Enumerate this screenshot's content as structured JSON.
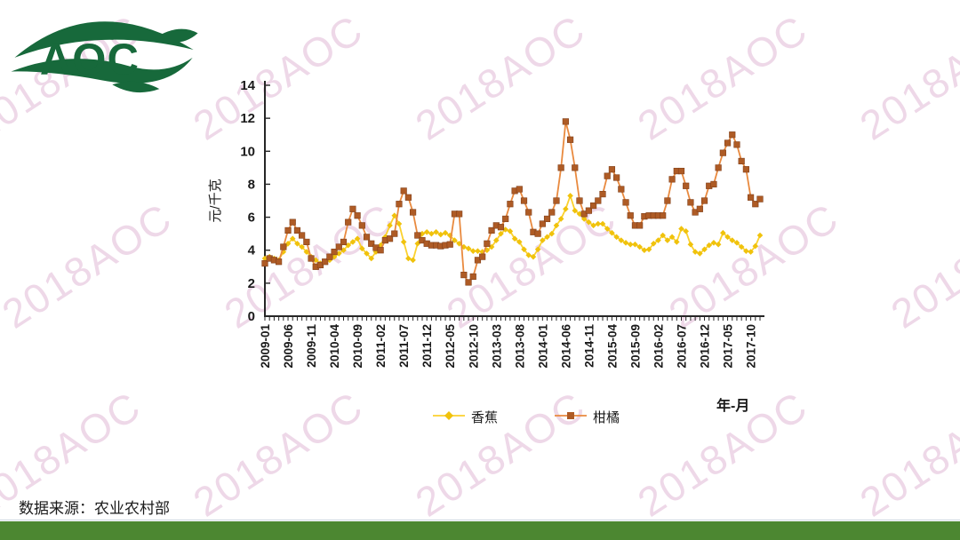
{
  "logo": {
    "text": "AOC",
    "color": "#17693B"
  },
  "watermark": {
    "text": "2018AOC",
    "color": "rgba(222,178,210,0.50)"
  },
  "source_note": "数据来源：农业农村部",
  "footer_bar_color": "#4C8731",
  "chart_data": {
    "type": "line",
    "title": "",
    "ylabel": "元/千克",
    "xlabel": "年-月",
    "ylim": [
      0,
      14
    ],
    "ytick_step": 2,
    "grid": false,
    "legend_position": "bottom",
    "x_tick_every": 5,
    "x_tick_labels": [
      "2009-01",
      "2009-06",
      "2009-11",
      "2010-04",
      "2010-09",
      "2011-02",
      "2011-07",
      "2011-12",
      "2012-05",
      "2012-10",
      "2013-03",
      "2013-08",
      "2014-01",
      "2014-06",
      "2014-11",
      "2015-04",
      "2015-09",
      "2016-02",
      "2016-07",
      "2016-12",
      "2017-05",
      "2017-10"
    ],
    "x_start": "2009-01",
    "x_end": "2017-12",
    "series": [
      {
        "name": "香蕉",
        "marker": "diamond",
        "color": "#FBD12E",
        "marker_color": "#F0C20C",
        "values": [
          3.5,
          3.6,
          3.5,
          3.4,
          3.9,
          4.4,
          4.7,
          4.4,
          4.2,
          3.9,
          3.6,
          3.4,
          3.2,
          3.3,
          3.4,
          3.6,
          3.8,
          4.0,
          4.3,
          4.5,
          4.7,
          4.1,
          3.8,
          3.5,
          3.9,
          4.3,
          4.8,
          5.5,
          6.1,
          5.6,
          4.5,
          3.5,
          3.4,
          4.4,
          5.0,
          5.1,
          5.0,
          5.1,
          4.95,
          5.05,
          4.9,
          4.6,
          4.4,
          4.2,
          4.1,
          3.95,
          3.95,
          3.9,
          4.0,
          4.2,
          4.6,
          5.0,
          5.25,
          5.15,
          4.7,
          4.5,
          4.05,
          3.7,
          3.6,
          4.05,
          4.6,
          4.8,
          5.0,
          5.5,
          5.9,
          6.5,
          7.3,
          6.4,
          6.2,
          5.9,
          5.7,
          5.5,
          5.6,
          5.6,
          5.3,
          5.05,
          4.8,
          4.6,
          4.45,
          4.35,
          4.35,
          4.2,
          4.0,
          4.05,
          4.4,
          4.6,
          4.9,
          4.6,
          4.8,
          4.5,
          5.3,
          5.15,
          4.35,
          3.9,
          3.8,
          4.05,
          4.3,
          4.45,
          4.35,
          5.05,
          4.8,
          4.6,
          4.45,
          4.2,
          3.95,
          3.9,
          4.25,
          4.9
        ]
      },
      {
        "name": "柑橘",
        "marker": "square",
        "color": "#E98A3F",
        "marker_color": "#AE5B25",
        "values": [
          3.2,
          3.5,
          3.4,
          3.3,
          4.2,
          5.2,
          5.7,
          5.2,
          4.9,
          4.5,
          3.5,
          3.0,
          3.1,
          3.3,
          3.6,
          3.9,
          4.2,
          4.5,
          5.7,
          6.5,
          6.1,
          5.5,
          4.8,
          4.4,
          4.15,
          4.0,
          4.6,
          4.7,
          5.0,
          6.8,
          7.6,
          7.2,
          6.3,
          4.9,
          4.6,
          4.4,
          4.3,
          4.3,
          4.25,
          4.3,
          4.35,
          6.2,
          6.2,
          2.5,
          2.05,
          2.4,
          3.4,
          3.6,
          4.4,
          5.2,
          5.5,
          5.4,
          5.9,
          6.8,
          7.6,
          7.7,
          7.0,
          6.3,
          5.1,
          5.0,
          5.6,
          5.9,
          6.3,
          7.0,
          9.0,
          11.8,
          10.7,
          9.0,
          7.0,
          6.2,
          6.4,
          6.7,
          7.0,
          7.4,
          8.5,
          8.9,
          8.4,
          7.7,
          6.9,
          6.1,
          5.5,
          5.5,
          6.05,
          6.1,
          6.1,
          6.1,
          6.1,
          7.0,
          8.3,
          8.8,
          8.8,
          7.9,
          6.9,
          6.3,
          6.5,
          7.0,
          7.9,
          8.0,
          9.0,
          9.9,
          10.5,
          11.0,
          10.4,
          9.4,
          8.9,
          7.2,
          6.8,
          7.1
        ]
      }
    ]
  }
}
